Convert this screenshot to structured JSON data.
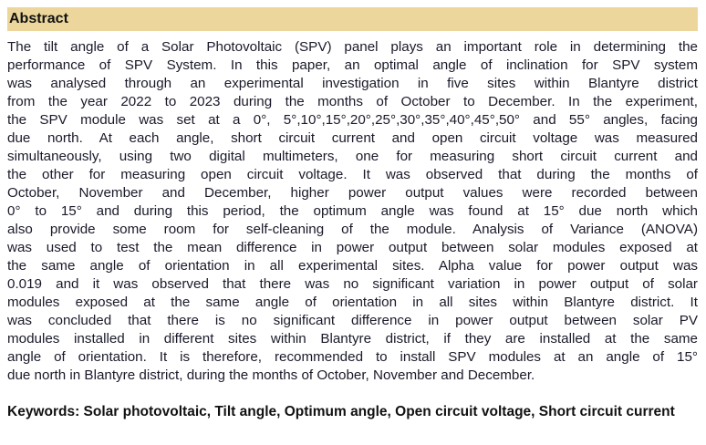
{
  "section_title": "Abstract",
  "abstract_lines": [
    "The tilt angle of a Solar Photovoltaic (SPV) panel plays an important role in determining the",
    "performance of SPV System. In this paper, an optimal angle of inclination for SPV system",
    "was analysed through an experimental investigation in five sites within Blantyre district",
    "from the year 2022 to 2023 during the months of October to December. In the experiment,",
    "the SPV module was set at a 0°, 5°,10°,15°,20°,25°,30°,35°,40°,45°,50° and 55° angles, facing",
    "due north. At each angle, short circuit current and open circuit voltage was measured",
    "simultaneously, using two digital multimeters, one for measuring short circuit current and",
    "the other for measuring open circuit voltage. It was observed that during the months of",
    "October, November and December, higher power output values were recorded between",
    "0° to 15° and during this period, the optimum angle was found at 15° due north which",
    "also provide some room for self-cleaning of the module. Analysis of Variance (ANOVA)",
    "was used to test the mean difference in power output between solar modules exposed at",
    "the same angle of orientation in all experimental sites. Alpha value for power output was",
    "0.019 and it was observed that there was no significant variation in power output of solar",
    "modules exposed at the same angle of orientation in all sites within Blantyre district. It",
    "was concluded that there is no significant difference in power output between solar PV",
    "modules installed in different sites within Blantyre district, if they are installed at the same",
    "angle of orientation. It is therefore, recommended to install SPV modules at an angle of 15°",
    "due north in Blantyre district, during the months of October, November and December."
  ],
  "keywords": "Keywords: Solar photovoltaic, Tilt angle, Optimum angle, Open circuit voltage, Short circuit current",
  "colors": {
    "header_bg": "#ecd69b"
  }
}
